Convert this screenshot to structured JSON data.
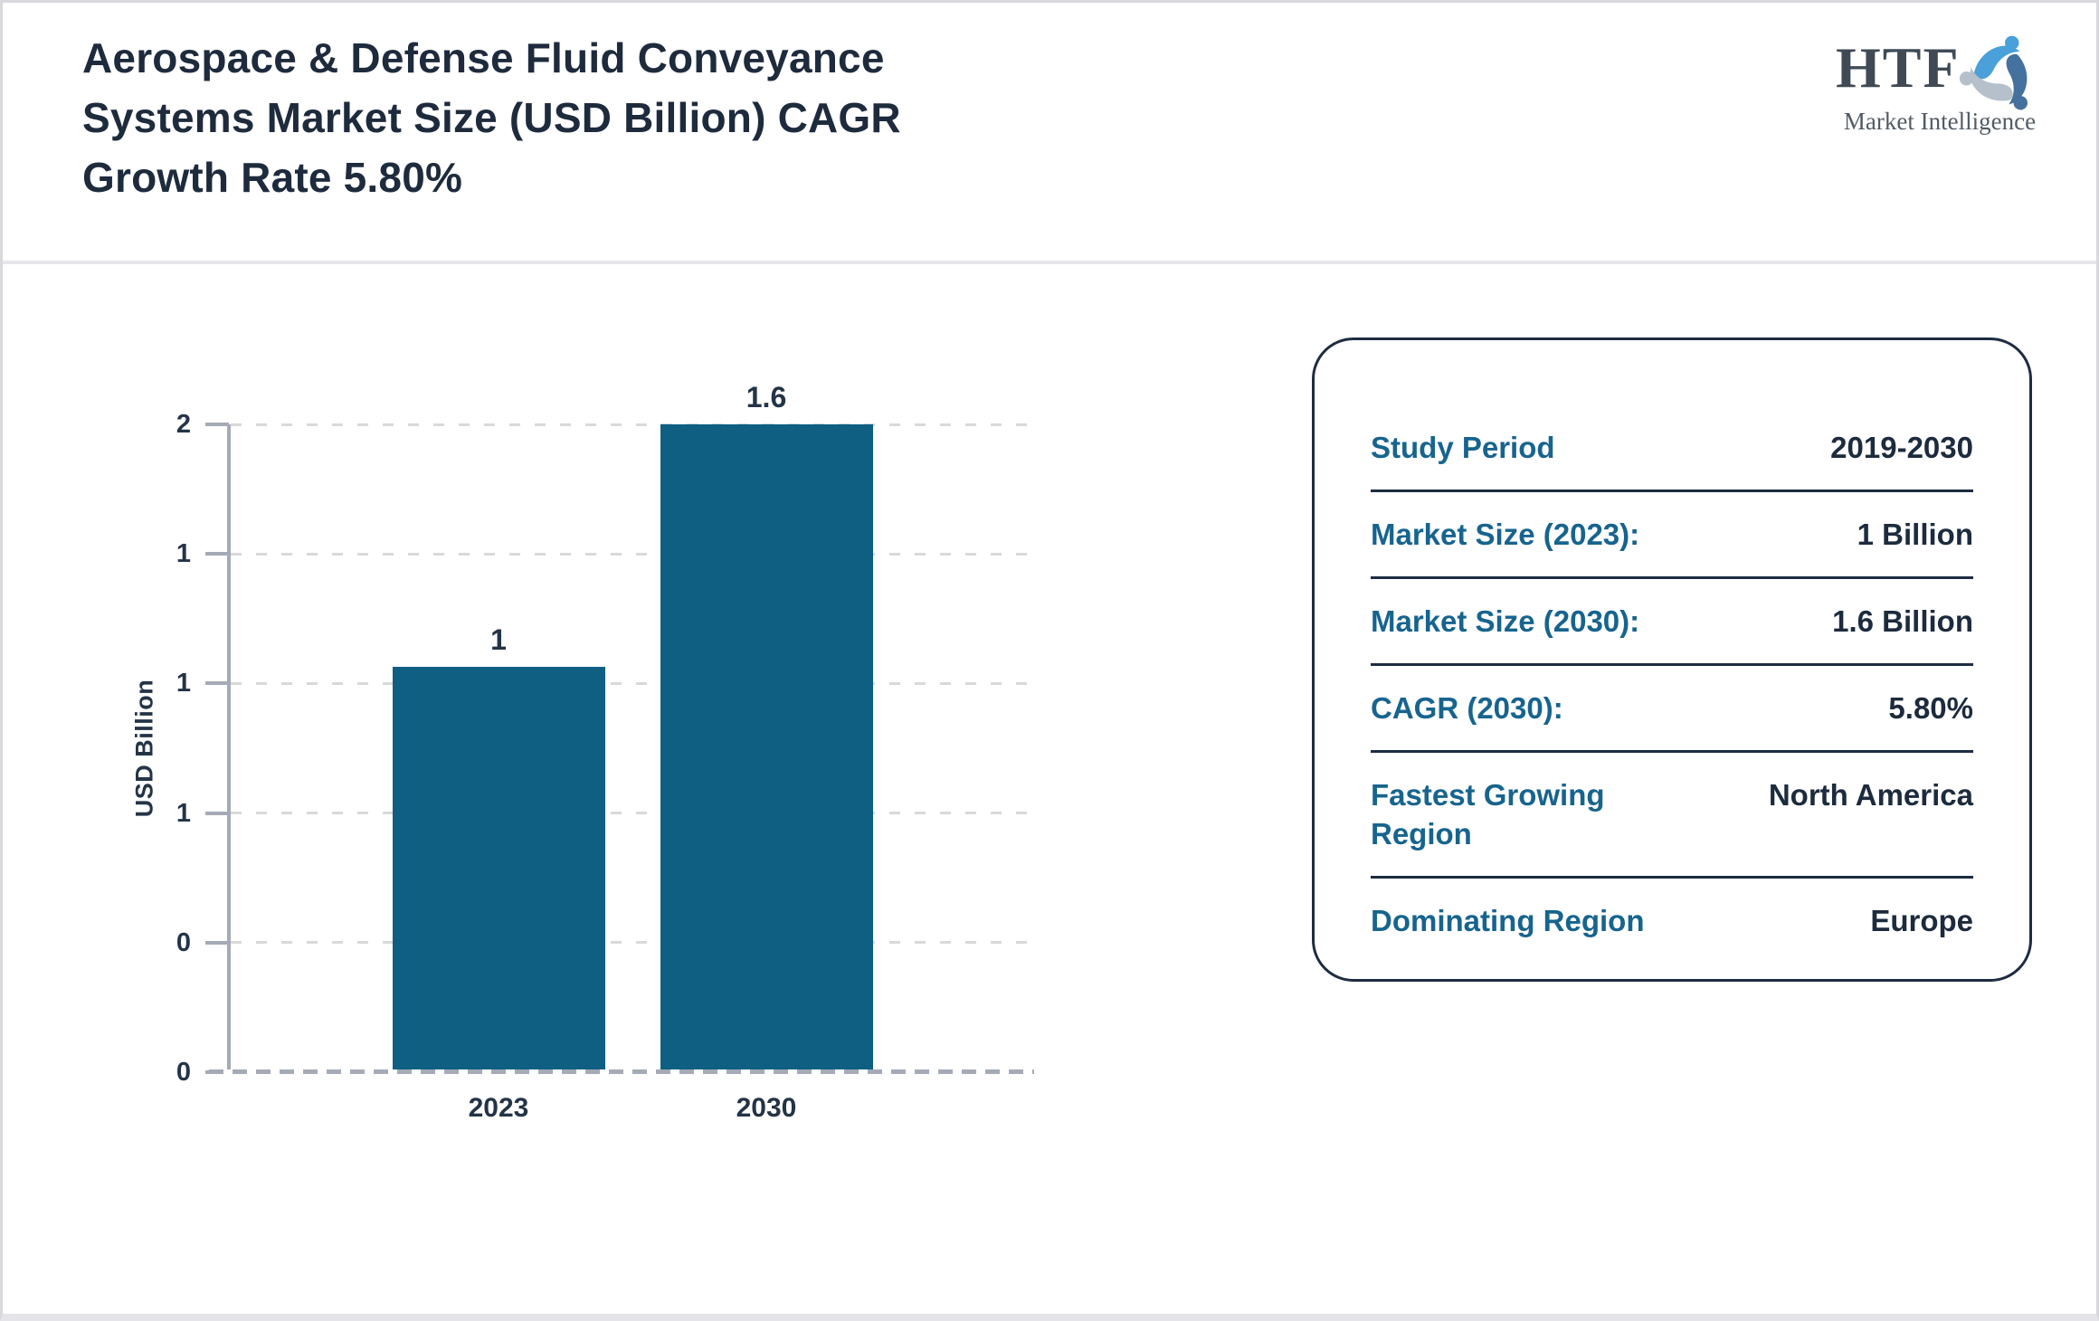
{
  "header": {
    "title_lines": [
      "Aerospace & Defense Fluid Conveyance",
      "Systems Market Size (USD Billion) CAGR",
      "Growth Rate 5.80%"
    ],
    "logo": {
      "acronym": "HTF",
      "tagline": "Market Intelligence"
    }
  },
  "chart_data": {
    "type": "bar",
    "title": "Aerospace & Defense Fluid Conveyance Systems Market Size (USD Billion) CAGR Growth Rate 5.80%",
    "categories": [
      "2023",
      "2030"
    ],
    "values": [
      1,
      1.6
    ],
    "bar_labels": [
      "1",
      "1.6"
    ],
    "xlabel": "",
    "ylabel": "USD Billion",
    "ylim": [
      0,
      1.6
    ],
    "y_ticks_display_bottom_to_top": [
      "0",
      "0",
      "1",
      "1",
      "1",
      "2"
    ],
    "grid": "horizontal-dashed",
    "legend": "none",
    "bar_color": "#0F5F82"
  },
  "info_panel": {
    "rows": [
      {
        "label": "Study Period",
        "value": "2019-2030"
      },
      {
        "label": "Market Size (2023):",
        "value": "1 Billion"
      },
      {
        "label": "Market Size (2030):",
        "value": "1.6 Billion"
      },
      {
        "label": "CAGR (2030):",
        "value": "5.80%"
      },
      {
        "label": "Fastest Growing Region",
        "value": "North America"
      },
      {
        "label": "Dominating Region",
        "value": "Europe"
      }
    ]
  },
  "colors": {
    "bar": "#0F5F82",
    "panel_label_teal": "#17648E",
    "navy_text": "#1E2B3D",
    "axis_gray": "#A4ABB6",
    "logo_light_blue": "#4AA0D8",
    "logo_steel_blue": "#44719E",
    "logo_gray": "#B5C0CB"
  }
}
